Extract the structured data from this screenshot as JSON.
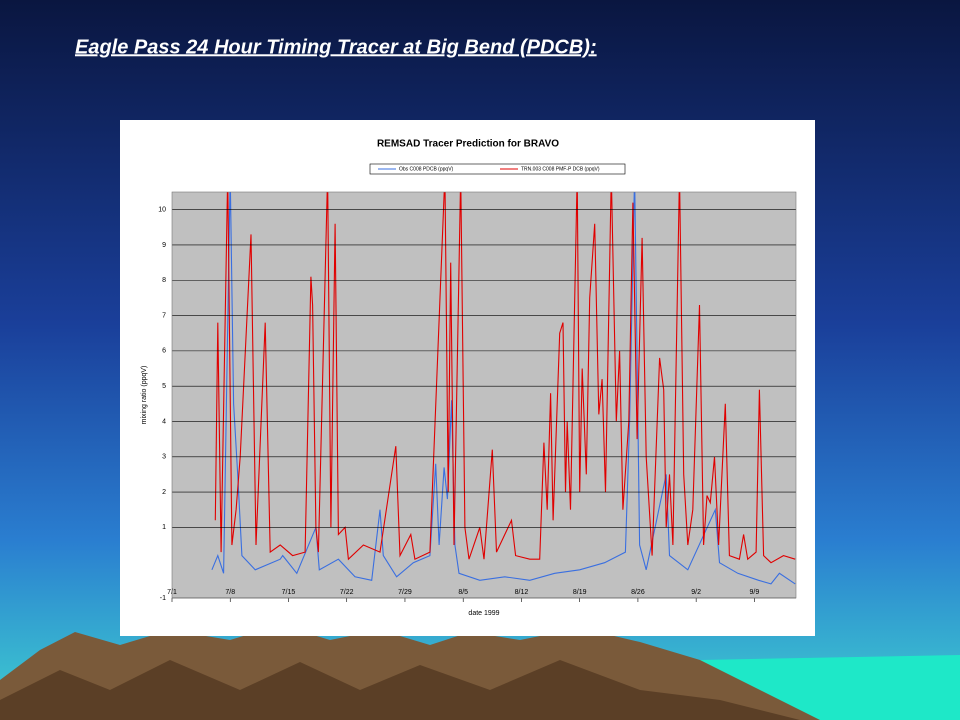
{
  "slide_title": "Eagle Pass 24 Hour Timing Tracer at Big Bend (PDCB):",
  "chart_data": {
    "type": "line",
    "title": "REMSAD Tracer Prediction for BRAVO",
    "x_label": "date 1999",
    "y_label": "mixing ratio (ppqV)",
    "xlim": [
      0,
      75
    ],
    "ylim": [
      -1,
      10.5
    ],
    "xticks": [
      {
        "value": 0,
        "label": "7/1"
      },
      {
        "value": 7,
        "label": "7/8"
      },
      {
        "value": 14,
        "label": "7/15"
      },
      {
        "value": 21,
        "label": "7/22"
      },
      {
        "value": 28,
        "label": "7/29"
      },
      {
        "value": 35,
        "label": "8/5"
      },
      {
        "value": 42,
        "label": "8/12"
      },
      {
        "value": 49,
        "label": "8/19"
      },
      {
        "value": 56,
        "label": "8/26"
      },
      {
        "value": 63,
        "label": "9/2"
      },
      {
        "value": 70,
        "label": "9/9"
      }
    ],
    "yticks": [
      -1,
      1,
      2,
      3,
      4,
      5,
      6,
      7,
      8,
      9,
      10
    ],
    "grid": true,
    "series": [
      {
        "name": "Obs C008 PDCB (ppqV)",
        "color": "#3a6fe0",
        "x": [
          4.8,
          5.5,
          6.2,
          7,
          7.4,
          7.9,
          8.4,
          10,
          13,
          13.3,
          15,
          17.3,
          17.7,
          20,
          22,
          24,
          25,
          25.4,
          27,
          29,
          31,
          31.7,
          32.1,
          32.7,
          33.1,
          33.6,
          34,
          34.5,
          37,
          40,
          43,
          46,
          49,
          52,
          54.5,
          55,
          55.6,
          56.2,
          57,
          59.4,
          59.8,
          62,
          65.3,
          65.8,
          68,
          70.5,
          72,
          73,
          74.9
        ],
        "values": [
          -0.2,
          0.2,
          -0.3,
          11,
          4.5,
          2.5,
          0.2,
          -0.2,
          0.1,
          0.2,
          -0.3,
          1,
          -0.2,
          0.1,
          -0.4,
          -0.5,
          1.5,
          0.2,
          -0.4,
          0,
          0.2,
          2.8,
          0.5,
          2.7,
          1.8,
          4.6,
          0.5,
          -0.3,
          -0.5,
          -0.4,
          -0.5,
          -0.3,
          -0.2,
          0,
          0.3,
          4,
          11,
          0.5,
          -0.2,
          2.5,
          0.2,
          -0.2,
          1.5,
          0,
          -0.3,
          -0.5,
          -0.6,
          -0.3,
          -0.6
        ]
      },
      {
        "name": "TRN.003 C008 PMF-P DCB (ppqV)",
        "color": "#e00000",
        "x": [
          5.2,
          5.5,
          5.9,
          6.7,
          7.2,
          7.7,
          8.2,
          9.5,
          10.1,
          11.2,
          11.8,
          13,
          14.5,
          16,
          16.7,
          16.9,
          17.3,
          17.6,
          18.7,
          19.1,
          19.6,
          20,
          20.8,
          21.2,
          23,
          25,
          26.9,
          27.4,
          28.7,
          29.2,
          31,
          32.8,
          33.2,
          33.5,
          33.9,
          34.7,
          35.2,
          35.7,
          37,
          37.5,
          38.5,
          39,
          40.8,
          41.3,
          43,
          44.2,
          44.7,
          45.1,
          45.5,
          45.8,
          46.6,
          47,
          47.3,
          47.5,
          47.9,
          48.7,
          49,
          49.3,
          49.8,
          50.2,
          50.8,
          51.3,
          51.7,
          52.1,
          52.8,
          53.4,
          53.8,
          54.2,
          54.9,
          55.4,
          55.9,
          56.5,
          57,
          57.7,
          58.6,
          59.1,
          59.4,
          59.8,
          60.2,
          61,
          61.5,
          62,
          62.6,
          63.4,
          63.9,
          64.3,
          64.7,
          65.2,
          65.7,
          66.5,
          67,
          68.2,
          68.7,
          69.2,
          70.2,
          70.6,
          71.1,
          72,
          73.5,
          74.9
        ],
        "values": [
          1.2,
          6.8,
          0.3,
          11,
          0.5,
          1.5,
          3,
          9.3,
          0.5,
          6.8,
          0.3,
          0.5,
          0.2,
          0.3,
          8.1,
          7.3,
          1,
          0.3,
          11,
          1,
          9.6,
          0.8,
          1,
          0.1,
          0.5,
          0.3,
          3.3,
          0.2,
          0.8,
          0.1,
          0.3,
          11,
          2,
          8.5,
          0.5,
          11,
          1,
          0.1,
          1,
          0.1,
          3.2,
          0.3,
          1.2,
          0.2,
          0.1,
          0.1,
          3.4,
          1.5,
          4.8,
          1.2,
          6.5,
          6.8,
          2,
          4,
          1.5,
          11,
          2,
          5.5,
          2.5,
          7.5,
          9.6,
          4.2,
          5.2,
          2,
          11,
          4,
          6,
          1.5,
          4,
          10.2,
          3.5,
          9.2,
          3,
          0.2,
          5.8,
          4.9,
          1,
          2.5,
          0.5,
          11,
          2.5,
          0.5,
          1.5,
          7.3,
          0.5,
          1.9,
          1.7,
          3,
          0.5,
          4.5,
          0.2,
          0.1,
          0.8,
          0.1,
          0.3,
          4.9,
          0.2,
          0,
          0.2,
          0.1
        ]
      }
    ]
  }
}
